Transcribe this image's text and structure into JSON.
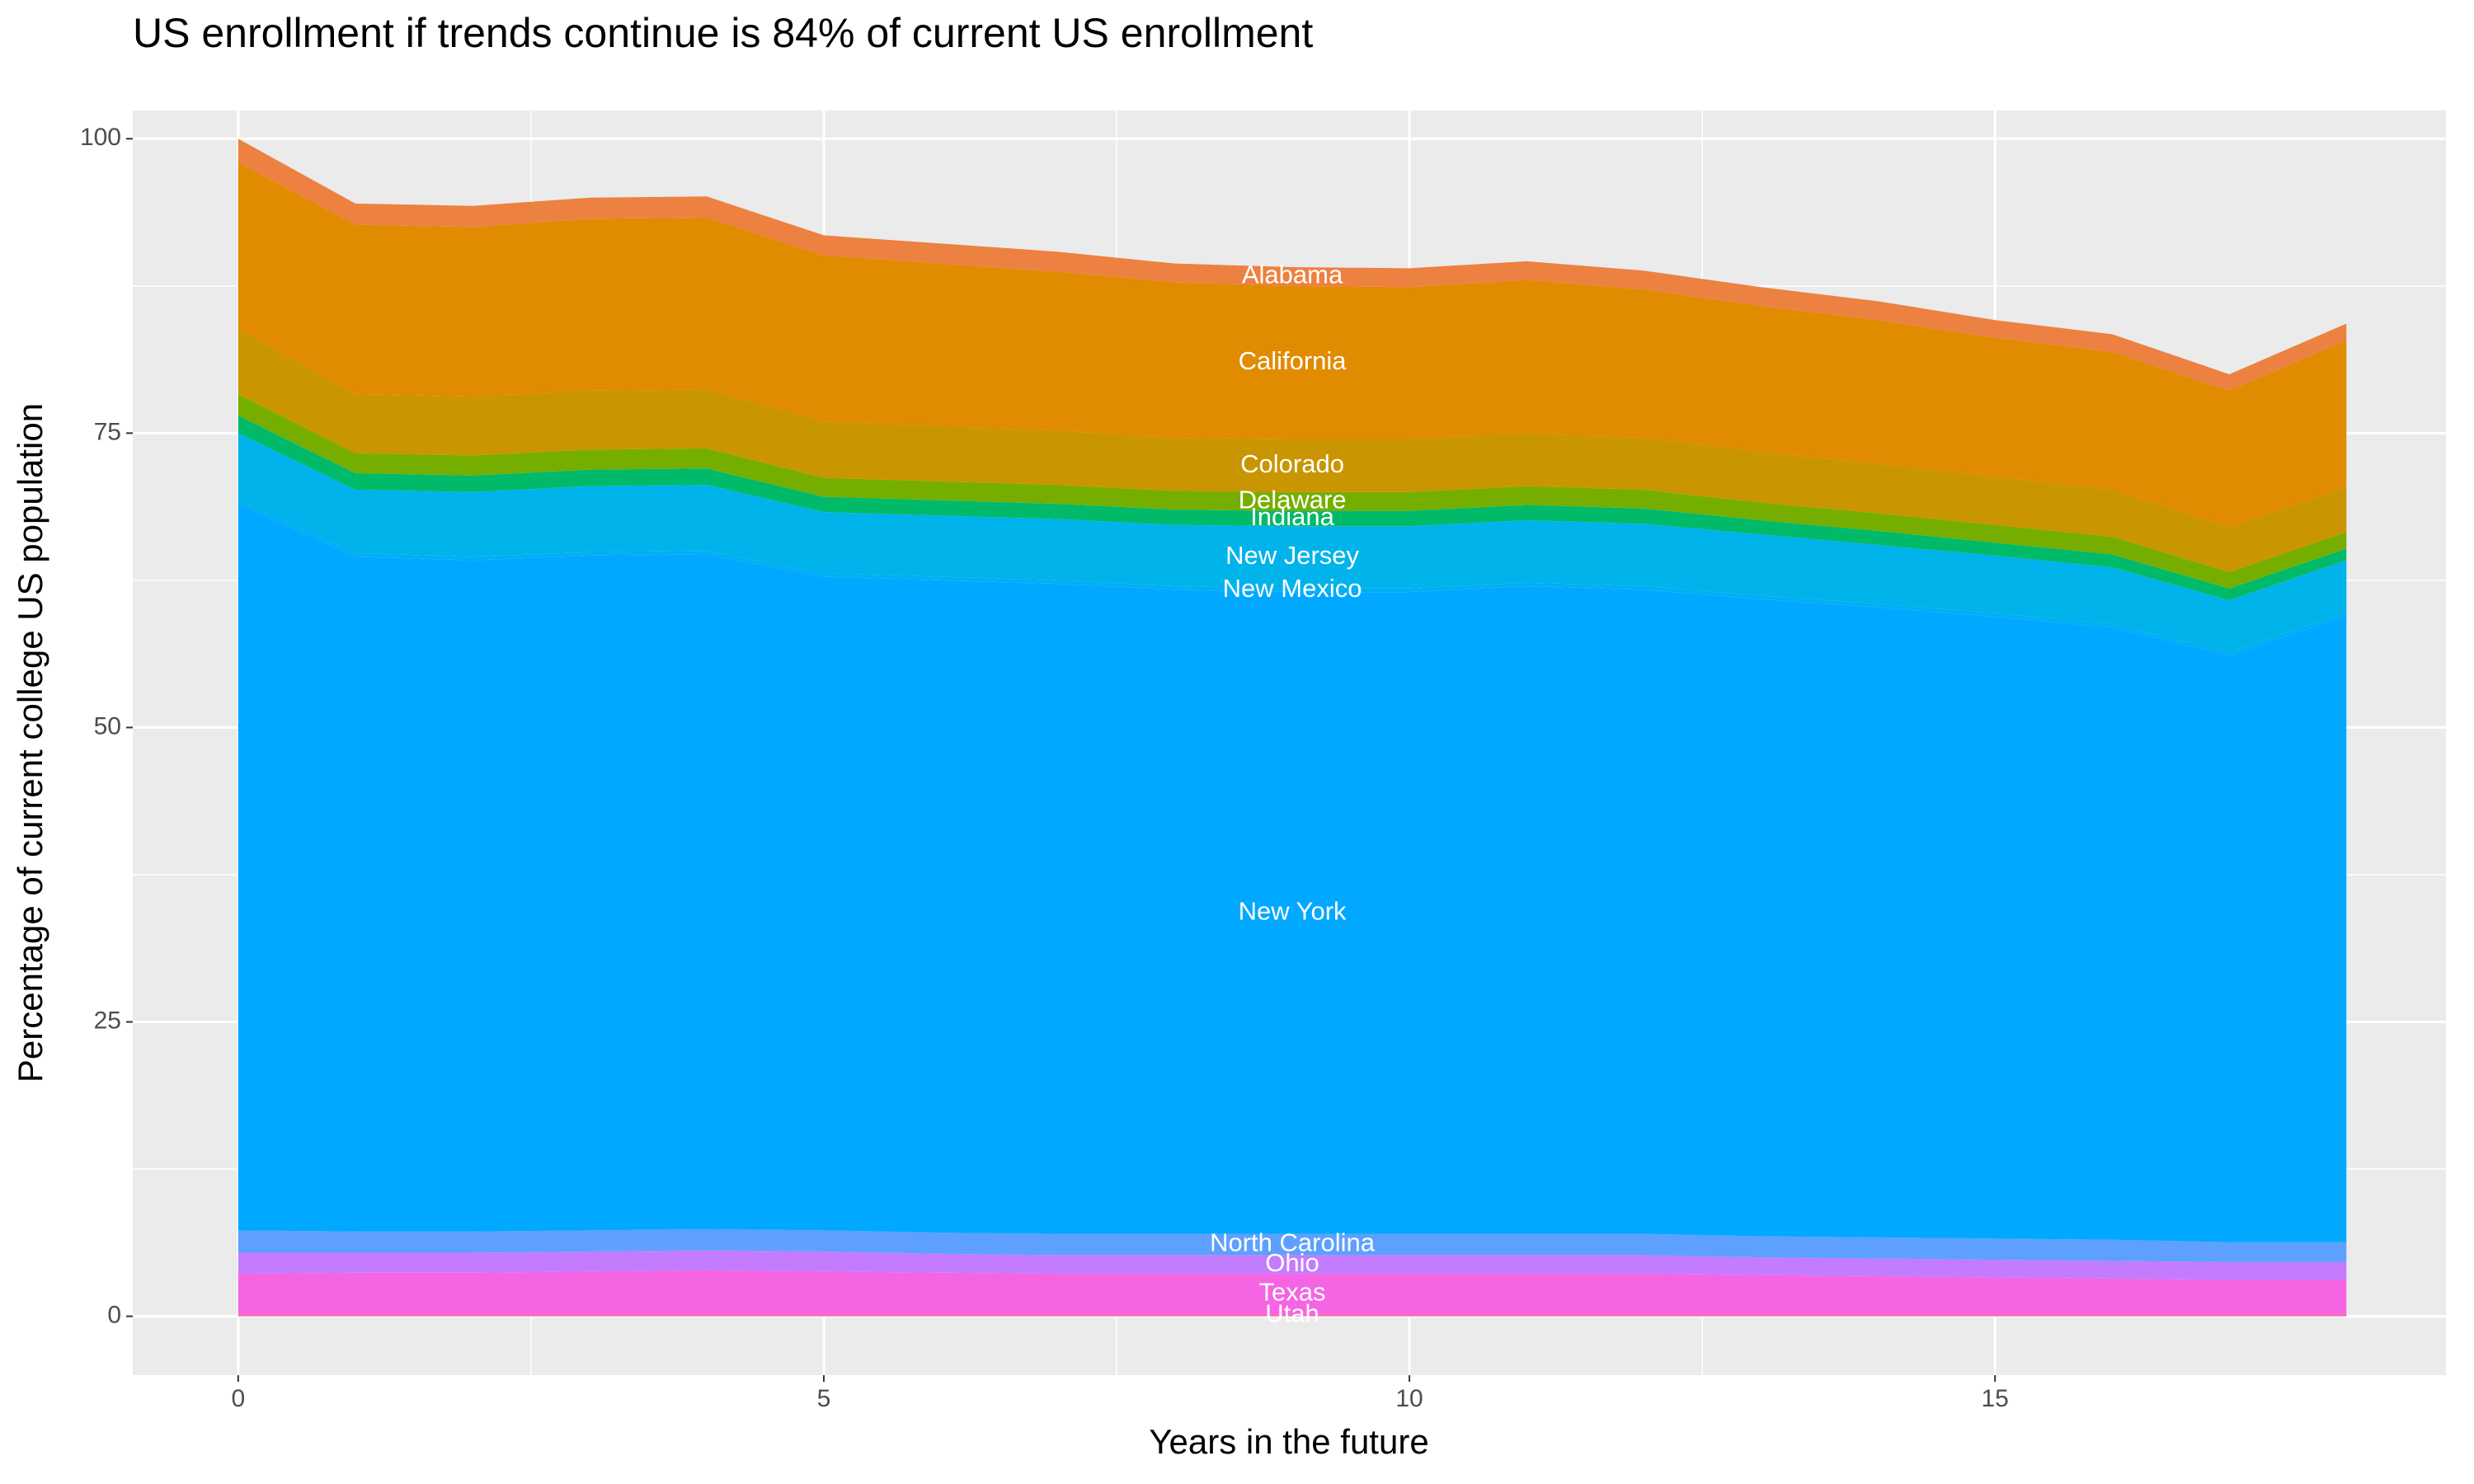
{
  "chart_data": {
    "type": "stacked_area",
    "title": "US enrollment if trends continue is 84% of current US enrollment",
    "x_label": "Years in the future",
    "y_label": "Percentage of current college US population",
    "x": [
      0,
      1,
      2,
      3,
      4,
      5,
      6,
      7,
      8,
      9,
      10,
      11,
      12,
      13,
      14,
      15,
      16,
      17,
      18
    ],
    "xlim": [
      -0.9,
      18.85
    ],
    "xticks": [
      0,
      5,
      10,
      15
    ],
    "ylim": [
      -5.0,
      102.4
    ],
    "yticks": [
      0,
      25,
      50,
      75,
      100
    ],
    "grid": true,
    "label_x": 9,
    "series": [
      {
        "name": "Alabama",
        "color": "#ed8141",
        "values": [
          2.0,
          1.8,
          1.8,
          1.8,
          1.8,
          1.7,
          1.7,
          1.7,
          1.6,
          1.6,
          1.6,
          1.6,
          1.6,
          1.6,
          1.6,
          1.5,
          1.5,
          1.4,
          1.4
        ]
      },
      {
        "name": "California",
        "color": "#e08b00",
        "values": [
          14.2,
          14.4,
          14.4,
          14.6,
          14.6,
          14.1,
          13.8,
          13.5,
          13.2,
          13.0,
          12.9,
          13.0,
          12.6,
          12.4,
          12.2,
          11.8,
          11.7,
          11.6,
          12.5
        ]
      },
      {
        "name": "Colorado",
        "color": "#c99500",
        "values": [
          5.5,
          5.0,
          5.0,
          5.0,
          5.0,
          4.8,
          4.7,
          4.6,
          4.5,
          4.5,
          4.5,
          4.5,
          4.4,
          4.3,
          4.2,
          4.1,
          4.0,
          3.8,
          3.8
        ]
      },
      {
        "name": "Delaware",
        "color": "#76ae00",
        "values": [
          1.8,
          1.7,
          1.7,
          1.7,
          1.7,
          1.6,
          1.6,
          1.6,
          1.6,
          1.6,
          1.6,
          1.6,
          1.6,
          1.5,
          1.5,
          1.5,
          1.5,
          1.4,
          1.4
        ]
      },
      {
        "name": "Indiana",
        "color": "#00ba6a",
        "values": [
          1.5,
          1.4,
          1.4,
          1.4,
          1.4,
          1.3,
          1.3,
          1.3,
          1.3,
          1.3,
          1.3,
          1.3,
          1.3,
          1.2,
          1.2,
          1.1,
          1.1,
          1.0,
          1.0
        ]
      },
      {
        "name": "New Jersey",
        "color": "#00b3ea",
        "values": [
          5.7,
          5.4,
          5.5,
          5.6,
          5.6,
          5.2,
          5.2,
          5.2,
          5.2,
          5.3,
          5.3,
          5.3,
          5.3,
          5.2,
          5.0,
          4.9,
          4.8,
          4.4,
          4.4
        ]
      },
      {
        "name": "New Mexico",
        "color": "#00aff6",
        "values": [
          0.3,
          0.3,
          0.3,
          0.3,
          0.3,
          0.3,
          0.3,
          0.3,
          0.3,
          0.3,
          0.3,
          0.3,
          0.3,
          0.3,
          0.3,
          0.3,
          0.3,
          0.3,
          0.3
        ]
      },
      {
        "name": "New York",
        "color": "#00a9ff",
        "values": [
          61.7,
          57.3,
          57.0,
          57.3,
          57.3,
          55.5,
          55.4,
          55.2,
          54.7,
          54.5,
          54.5,
          55.0,
          54.7,
          54.1,
          53.5,
          52.8,
          52.0,
          49.8,
          53.2
        ]
      },
      {
        "name": "North Carolina",
        "color": "#5ea0ff",
        "values": [
          1.9,
          1.8,
          1.8,
          1.8,
          1.8,
          1.8,
          1.8,
          1.8,
          1.8,
          1.8,
          1.8,
          1.8,
          1.8,
          1.8,
          1.8,
          1.8,
          1.8,
          1.7,
          1.7
        ]
      },
      {
        "name": "Ohio",
        "color": "#c47cff",
        "values": [
          1.8,
          1.7,
          1.7,
          1.7,
          1.7,
          1.7,
          1.6,
          1.6,
          1.6,
          1.6,
          1.6,
          1.6,
          1.6,
          1.5,
          1.5,
          1.5,
          1.5,
          1.5,
          1.5
        ]
      },
      {
        "name": "Texas",
        "color": "#f564e3",
        "values": [
          3.4,
          3.5,
          3.5,
          3.6,
          3.7,
          3.6,
          3.5,
          3.4,
          3.4,
          3.4,
          3.4,
          3.4,
          3.4,
          3.3,
          3.2,
          3.1,
          3.0,
          2.9,
          2.9
        ]
      },
      {
        "name": "Utah",
        "color": "#ff63b6",
        "values": [
          0.2,
          0.2,
          0.2,
          0.2,
          0.2,
          0.2,
          0.2,
          0.2,
          0.2,
          0.2,
          0.2,
          0.2,
          0.2,
          0.2,
          0.2,
          0.2,
          0.2,
          0.2,
          0.2
        ]
      }
    ]
  }
}
